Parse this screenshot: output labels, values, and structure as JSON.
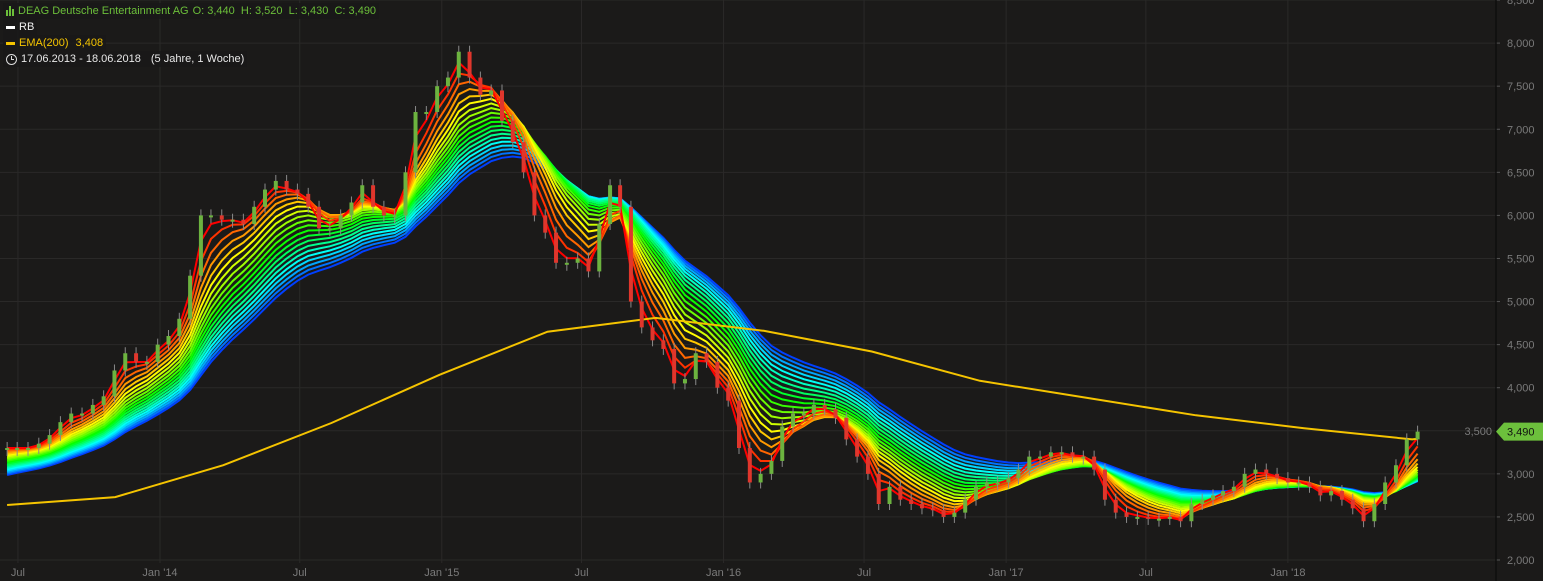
{
  "legend": {
    "title": "DEAG Deutsche Entertainment AG",
    "ohlc": "O: 3,440  H: 3,520  L: 3,430  C: 3,490",
    "rb_label": "RB",
    "ema_label": "EMA(200)",
    "ema_value": "3,408",
    "range": "17.06.2013 - 18.06.2018",
    "span": "(5 Jahre, 1 Woche)"
  },
  "colors": {
    "background": "#1b1a19",
    "grid": "#2a2928",
    "up": "#6cb33f",
    "down": "#e0362c",
    "ema200": "#f5c400",
    "price_tag": "#6cc03c",
    "axis_text": "#7a7a7a"
  },
  "chart_data": {
    "type": "candlestick",
    "title": "DEAG Deutsche Entertainment AG",
    "period": [
      "2013-06-17",
      "2018-06-18"
    ],
    "ylim": [
      2000,
      8500
    ],
    "grid": true,
    "y_ticks": [
      "2,000",
      "2,500",
      "3,000",
      "3,500",
      "4,000",
      "4,500",
      "5,000",
      "5,500",
      "6,000",
      "6,500",
      "7,000",
      "7,500",
      "8,000",
      "8,500"
    ],
    "y_tick_values": [
      2000,
      2500,
      3000,
      3500,
      4000,
      4500,
      5000,
      5500,
      6000,
      6500,
      7000,
      7500,
      8000,
      8500
    ],
    "x_ticks": [
      {
        "label": "Jul",
        "date": "2013-07-01"
      },
      {
        "label": "Jan '14",
        "date": "2014-01-01"
      },
      {
        "label": "Jul",
        "date": "2014-07-01"
      },
      {
        "label": "Jan '15",
        "date": "2015-01-01"
      },
      {
        "label": "Jul",
        "date": "2015-07-01"
      },
      {
        "label": "Jan '16",
        "date": "2016-01-01"
      },
      {
        "label": "Jul",
        "date": "2016-07-01"
      },
      {
        "label": "Jan '17",
        "date": "2017-01-01"
      },
      {
        "label": "Jul",
        "date": "2017-07-01"
      },
      {
        "label": "Jan '18",
        "date": "2018-01-01"
      }
    ],
    "closes": [
      3300,
      3300,
      3300,
      3350,
      3450,
      3600,
      3700,
      3700,
      3800,
      3900,
      4200,
      4400,
      4300,
      4300,
      4500,
      4600,
      4800,
      5300,
      6000,
      6000,
      5950,
      5950,
      5900,
      6100,
      6300,
      6400,
      6300,
      6250,
      6100,
      5850,
      5850,
      6000,
      6150,
      6350,
      6100,
      6000,
      6000,
      6500,
      7200,
      7200,
      7500,
      7600,
      7900,
      7600,
      7400,
      7450,
      7100,
      6850,
      6500,
      6000,
      5800,
      5450,
      5450,
      5500,
      5350,
      5900,
      6350,
      6100,
      5000,
      4700,
      4550,
      4450,
      4050,
      4100,
      4400,
      4300,
      4000,
      3850,
      3300,
      2900,
      3000,
      3150,
      3550,
      3700,
      3700,
      3800,
      3750,
      3650,
      3400,
      3200,
      3000,
      2650,
      2850,
      2700,
      2650,
      2600,
      2580,
      2500,
      2550,
      2700,
      2850,
      2900,
      2900,
      2950,
      3050,
      3200,
      3200,
      3250,
      3250,
      3200,
      3200,
      3050,
      2700,
      2550,
      2500,
      2500,
      2480,
      2480,
      2500,
      2450,
      2650,
      2700,
      2750,
      2800,
      2850,
      3000,
      3050,
      3000,
      2950,
      2900,
      2900,
      2850,
      2750,
      2800,
      2700,
      2600,
      2450,
      2650,
      2900,
      3100,
      3400,
      3490
    ],
    "ema200": [
      {
        "date": "2013-06-17",
        "value": 2638
      },
      {
        "date": "2013-11-04",
        "value": 2730
      },
      {
        "date": "2014-03-24",
        "value": 3100
      },
      {
        "date": "2014-08-11",
        "value": 3590
      },
      {
        "date": "2014-12-29",
        "value": 4150
      },
      {
        "date": "2015-05-18",
        "value": 4650
      },
      {
        "date": "2015-10-05",
        "value": 4810
      },
      {
        "date": "2016-02-22",
        "value": 4660
      },
      {
        "date": "2016-07-11",
        "value": 4420
      },
      {
        "date": "2016-11-28",
        "value": 4080
      },
      {
        "date": "2017-04-17",
        "value": 3880
      },
      {
        "date": "2017-09-04",
        "value": 3680
      },
      {
        "date": "2018-01-22",
        "value": 3530
      },
      {
        "date": "2018-06-11",
        "value": 3400
      },
      {
        "date": "2018-06-18",
        "value": 3408
      }
    ],
    "last_price": 3490,
    "last_price_label": "3,490"
  }
}
